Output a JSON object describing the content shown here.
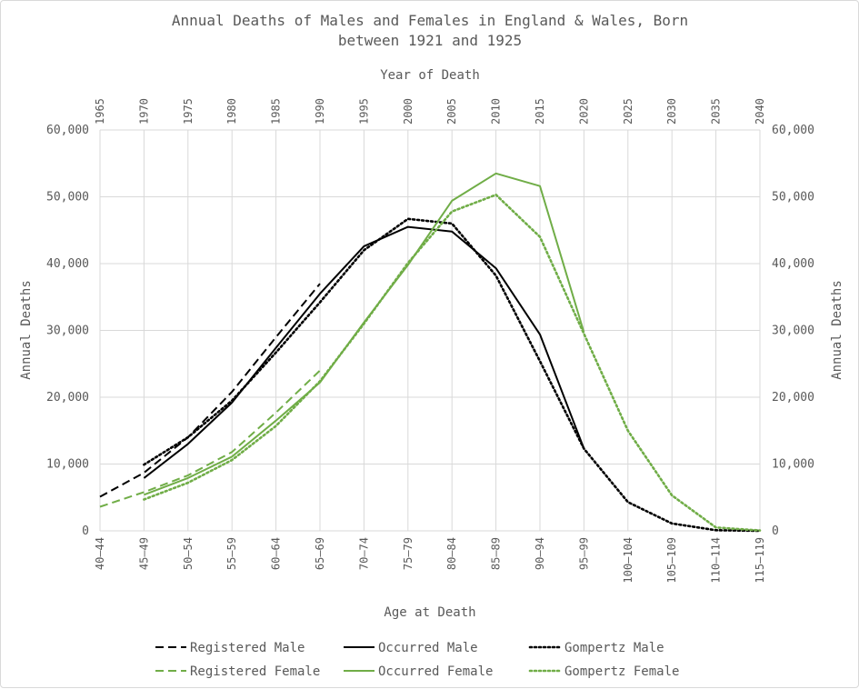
{
  "chart_data": {
    "type": "line",
    "title": "Annual Deaths of Males and Females in England & Wales, Born between 1921 and 1925",
    "title_lines": [
      "Annual Deaths of Males and Females in England & Wales, Born",
      "between 1921 and 1925"
    ],
    "xlabel": "Age at Death",
    "x2label": "Year of Death",
    "ylabel": "Annual Deaths",
    "y2label": "Annual Deaths",
    "ylim": [
      0,
      60000
    ],
    "yticks": [
      "0",
      "10,000",
      "20,000",
      "30,000",
      "40,000",
      "50,000",
      "60,000"
    ],
    "categories": [
      "40–44",
      "45–49",
      "50–54",
      "55–59",
      "60–64",
      "65–69",
      "70–74",
      "75–79",
      "80–84",
      "85–89",
      "90–94",
      "95–99",
      "100–104",
      "105–109",
      "110–114",
      "115–119"
    ],
    "top_ticks": [
      "1965",
      "1970",
      "1975",
      "1980",
      "1985",
      "1990",
      "1995",
      "2000",
      "2005",
      "2010",
      "2015",
      "2020",
      "2025",
      "2030",
      "2035",
      "2040"
    ],
    "grid": true,
    "legend_position": "bottom",
    "series": [
      {
        "name": "Registered Male",
        "color": "#000000",
        "dash": "dashed",
        "values": [
          5100,
          8700,
          14000,
          20800,
          29000,
          37000,
          null,
          null,
          null,
          null,
          null,
          null,
          null,
          null,
          null,
          null
        ]
      },
      {
        "name": "Occurred Male",
        "color": "#000000",
        "dash": "solid",
        "values": [
          null,
          7900,
          13000,
          19200,
          27400,
          35500,
          42600,
          45500,
          44800,
          39300,
          29400,
          12300,
          null,
          null,
          null,
          null
        ]
      },
      {
        "name": "Gompertz Male",
        "color": "#000000",
        "dash": "dotted",
        "values": [
          null,
          9900,
          14000,
          19500,
          26700,
          34200,
          42000,
          46700,
          46000,
          38200,
          25400,
          12300,
          4300,
          1100,
          100,
          0
        ]
      },
      {
        "name": "Registered Female",
        "color": "#70ad47",
        "dash": "dashed",
        "values": [
          3600,
          5800,
          8300,
          11800,
          17700,
          24000,
          null,
          null,
          null,
          null,
          null,
          null,
          null,
          null,
          null,
          null
        ]
      },
      {
        "name": "Occurred Female",
        "color": "#70ad47",
        "dash": "solid",
        "values": [
          null,
          5400,
          7900,
          11100,
          16500,
          22200,
          31200,
          39800,
          49400,
          53500,
          51600,
          29700,
          null,
          null,
          null,
          null
        ]
      },
      {
        "name": "Gompertz Female",
        "color": "#70ad47",
        "dash": "dotted",
        "values": [
          null,
          4700,
          7200,
          10600,
          15700,
          22400,
          31000,
          40100,
          47800,
          50300,
          44000,
          29500,
          15000,
          5300,
          500,
          50
        ]
      }
    ]
  }
}
